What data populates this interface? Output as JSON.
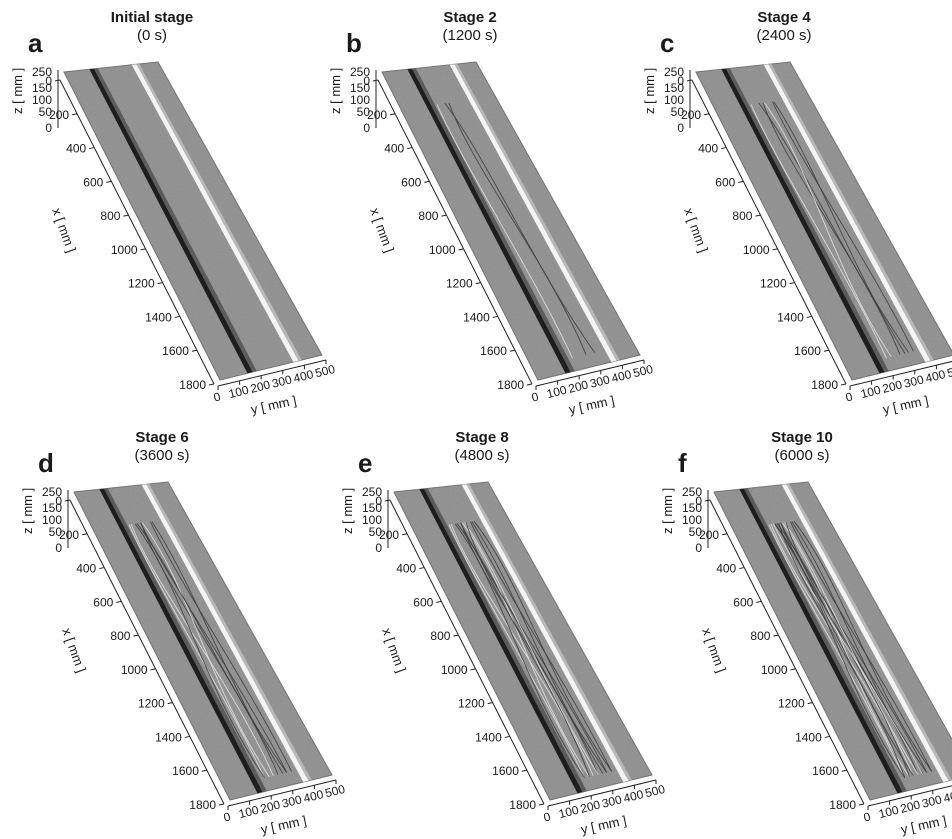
{
  "figure": {
    "axis_labels": {
      "x": "x [ mm ]",
      "y": "y [ mm ]",
      "z": "z [ mm ]"
    },
    "x_ticks": [
      "0",
      "200",
      "400",
      "600",
      "800",
      "1000",
      "1200",
      "1400",
      "1600",
      "1800"
    ],
    "y_ticks": [
      "0",
      "100",
      "200",
      "300",
      "400",
      "500"
    ],
    "z_ticks": [
      "250",
      "150",
      "100",
      "50",
      "0"
    ],
    "panels": [
      {
        "letter": "a",
        "title": "Initial stage",
        "time": "(0 s)",
        "channel_detail": 0
      },
      {
        "letter": "b",
        "title": "Stage 2",
        "time": "(1200 s)",
        "channel_detail": 1
      },
      {
        "letter": "c",
        "title": "Stage 4",
        "time": "(2400 s)",
        "channel_detail": 2
      },
      {
        "letter": "d",
        "title": "Stage 6",
        "time": "(3600 s)",
        "channel_detail": 3
      },
      {
        "letter": "e",
        "title": "Stage 8",
        "time": "(4800 s)",
        "channel_detail": 4
      },
      {
        "letter": "f",
        "title": "Stage 10",
        "time": "(6000 s)",
        "channel_detail": 5
      }
    ],
    "colors": {
      "surface": "#8e8e8e",
      "surface_dark": "#6f6f6f",
      "groove_dark": "#1e1e1e",
      "ridge_light": "#f4f4f4",
      "axis": "#222222"
    }
  }
}
